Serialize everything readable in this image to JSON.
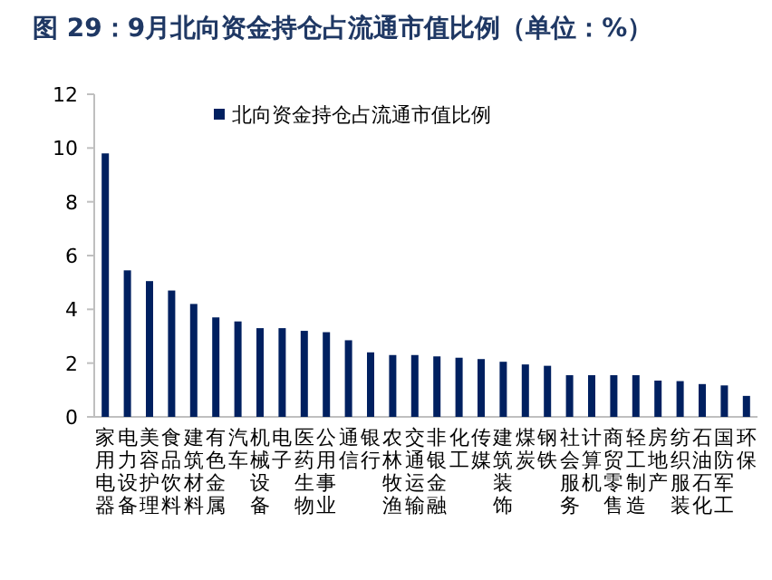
{
  "chart_data": {
    "type": "bar",
    "title": "图 29：9月北向资金持仓占流通市值比例（单位：%）",
    "categories": [
      "家用电器",
      "电力设备",
      "美容护理",
      "食品饮料",
      "建筑材料",
      "有色金属",
      "汽车",
      "机械设备",
      "电子",
      "医药生物",
      "公用事业",
      "通信",
      "银行",
      "农林牧渔",
      "交通运输",
      "非银金融",
      "化工",
      "传媒",
      "建筑装饰",
      "煤炭",
      "钢铁",
      "社会服务",
      "计算机",
      "商贸零售",
      "轻工制造",
      "房地产",
      "纺织服装",
      "石油石化",
      "国防军工",
      "环保"
    ],
    "series": [
      {
        "name": "北向资金持仓占流通市值比例",
        "color": "#002060",
        "values": [
          9.8,
          5.45,
          5.05,
          4.7,
          4.2,
          3.7,
          3.55,
          3.3,
          3.3,
          3.2,
          3.15,
          2.85,
          2.4,
          2.3,
          2.3,
          2.25,
          2.2,
          2.15,
          2.05,
          1.95,
          1.9,
          1.55,
          1.55,
          1.55,
          1.55,
          1.35,
          1.33,
          1.22,
          1.17,
          0.78
        ]
      }
    ],
    "ylim": [
      0,
      12
    ],
    "yticks": [
      0,
      2,
      4,
      6,
      8,
      10,
      12
    ],
    "grid": false,
    "legend": "top"
  }
}
